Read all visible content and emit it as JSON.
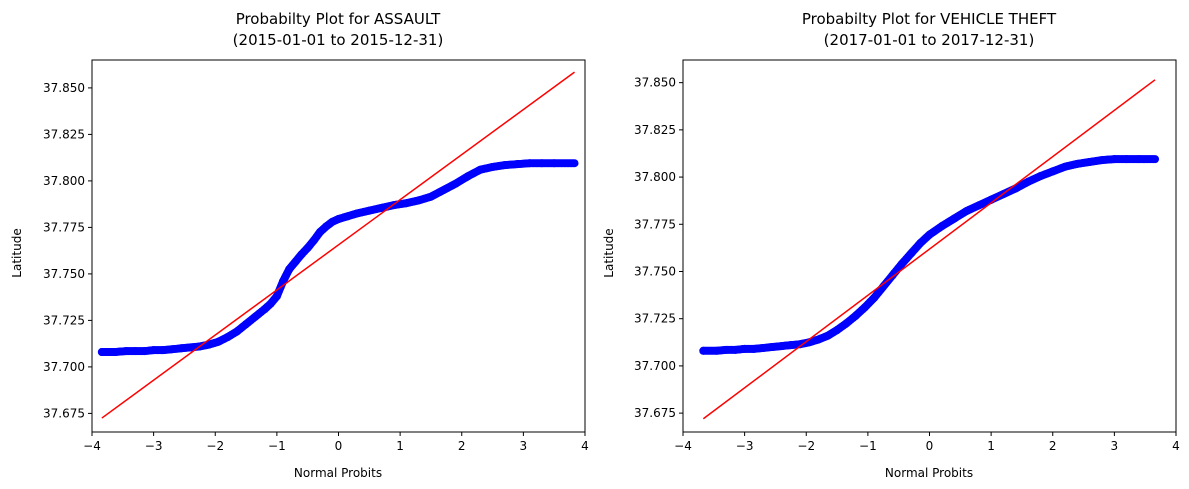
{
  "colors": {
    "points": "#0000ff",
    "fit_line": "#ff0000",
    "axes": "#000000",
    "background": "#ffffff"
  },
  "chart_data": [
    {
      "type": "scatter",
      "title": "Probabilty Plot for ASSAULT",
      "subtitle": "(2015-01-01 to 2015-12-31)",
      "xlabel": "Normal Probits",
      "ylabel": "Latitude",
      "xlim": [
        -4.0,
        4.0
      ],
      "ylim": [
        37.665,
        37.865
      ],
      "xticks": [
        -4,
        -3,
        -2,
        -1,
        0,
        1,
        2,
        3,
        4
      ],
      "xtick_labels": [
        "−4",
        "−3",
        "−2",
        "−1",
        "0",
        "1",
        "2",
        "3",
        "4"
      ],
      "yticks": [
        37.675,
        37.7,
        37.725,
        37.75,
        37.775,
        37.8,
        37.825,
        37.85
      ],
      "ytick_labels": [
        "37.675",
        "37.700",
        "37.725",
        "37.750",
        "37.775",
        "37.800",
        "37.825",
        "37.850"
      ],
      "grid": false,
      "series": [
        {
          "kind": "points",
          "x": [
            -3.84,
            -3.62,
            -3.45,
            -3.3,
            -3.15,
            -3.0,
            -2.85,
            -2.7,
            -2.55,
            -2.4,
            -2.25,
            -2.1,
            -1.95,
            -1.8,
            -1.65,
            -1.5,
            -1.35,
            -1.2,
            -1.1,
            -1.0,
            -0.9,
            -0.8,
            -0.7,
            -0.6,
            -0.5,
            -0.4,
            -0.3,
            -0.2,
            -0.1,
            0.0,
            0.15,
            0.3,
            0.5,
            0.7,
            0.9,
            1.1,
            1.3,
            1.5,
            1.7,
            1.9,
            2.1,
            2.3,
            2.5,
            2.7,
            2.9,
            3.1,
            3.3,
            3.5,
            3.83
          ],
          "y": [
            37.708,
            37.708,
            37.7085,
            37.7085,
            37.7085,
            37.709,
            37.709,
            37.7095,
            37.71,
            37.7105,
            37.711,
            37.712,
            37.7135,
            37.716,
            37.719,
            37.723,
            37.727,
            37.731,
            37.734,
            37.738,
            37.746,
            37.7525,
            37.7565,
            37.7605,
            37.764,
            37.768,
            37.7725,
            37.7755,
            37.778,
            37.7795,
            37.781,
            37.7825,
            37.784,
            37.7855,
            37.787,
            37.788,
            37.7895,
            37.7915,
            37.795,
            37.7985,
            37.8025,
            37.806,
            37.8075,
            37.8085,
            37.809,
            37.8095,
            37.8095,
            37.8095,
            37.8095
          ]
        },
        {
          "kind": "line",
          "x": [
            -3.84,
            3.83
          ],
          "y": [
            37.6725,
            37.8585
          ]
        }
      ]
    },
    {
      "type": "scatter",
      "title": "Probabilty Plot for VEHICLE THEFT",
      "subtitle": "(2017-01-01 to 2017-12-31)",
      "xlabel": "Normal Probits",
      "ylabel": "Latitude",
      "xlim": [
        -4.0,
        4.0
      ],
      "ylim": [
        37.665,
        37.862
      ],
      "xticks": [
        -4,
        -3,
        -2,
        -1,
        0,
        1,
        2,
        3,
        4
      ],
      "xtick_labels": [
        "−4",
        "−3",
        "−2",
        "−1",
        "0",
        "1",
        "2",
        "3",
        "4"
      ],
      "yticks": [
        37.675,
        37.7,
        37.725,
        37.75,
        37.775,
        37.8,
        37.825,
        37.85
      ],
      "ytick_labels": [
        "37.675",
        "37.700",
        "37.725",
        "37.750",
        "37.775",
        "37.800",
        "37.825",
        "37.850"
      ],
      "grid": false,
      "series": [
        {
          "kind": "points",
          "x": [
            -3.67,
            -3.45,
            -3.3,
            -3.15,
            -3.0,
            -2.85,
            -2.7,
            -2.55,
            -2.4,
            -2.25,
            -2.1,
            -1.95,
            -1.8,
            -1.65,
            -1.5,
            -1.35,
            -1.2,
            -1.05,
            -0.9,
            -0.75,
            -0.6,
            -0.45,
            -0.3,
            -0.15,
            0.0,
            0.2,
            0.4,
            0.6,
            0.8,
            1.0,
            1.2,
            1.4,
            1.6,
            1.8,
            2.0,
            2.2,
            2.4,
            2.6,
            2.8,
            3.0,
            3.2,
            3.4,
            3.66
          ],
          "y": [
            37.708,
            37.708,
            37.7085,
            37.7085,
            37.709,
            37.709,
            37.7095,
            37.71,
            37.7105,
            37.711,
            37.7115,
            37.7125,
            37.714,
            37.716,
            37.719,
            37.7225,
            37.7265,
            37.731,
            37.736,
            37.742,
            37.748,
            37.754,
            37.7595,
            37.765,
            37.7695,
            37.774,
            37.778,
            37.782,
            37.785,
            37.788,
            37.791,
            37.794,
            37.7975,
            37.8005,
            37.803,
            37.8055,
            37.807,
            37.808,
            37.809,
            37.8095,
            37.8095,
            37.8095,
            37.8095
          ]
        },
        {
          "kind": "line",
          "x": [
            -3.67,
            3.66
          ],
          "y": [
            37.672,
            37.8515
          ]
        }
      ]
    }
  ]
}
